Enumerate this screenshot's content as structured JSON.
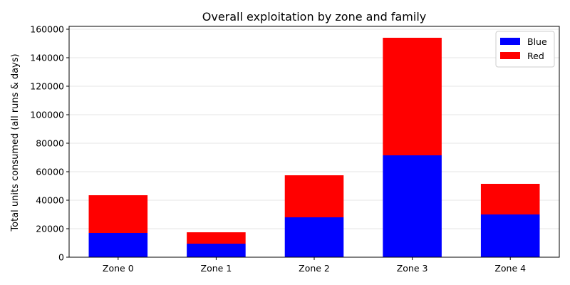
{
  "chart_data": {
    "type": "bar",
    "stacked": true,
    "title": "Overall exploitation by zone and family",
    "xlabel": "",
    "ylabel": "Total units consumed (all runs & days)",
    "categories": [
      "Zone 0",
      "Zone 1",
      "Zone 2",
      "Zone 3",
      "Zone 4"
    ],
    "series": [
      {
        "name": "Blue",
        "color": "#0000ff",
        "values": [
          17000,
          9500,
          28000,
          71500,
          30000
        ]
      },
      {
        "name": "Red",
        "color": "#ff0000",
        "values": [
          26500,
          8000,
          29500,
          82500,
          21500
        ]
      }
    ],
    "ylim": [
      0,
      162000
    ],
    "yticks": [
      0,
      20000,
      40000,
      60000,
      80000,
      100000,
      120000,
      140000,
      160000
    ],
    "grid": "y",
    "legend": "top-right"
  }
}
